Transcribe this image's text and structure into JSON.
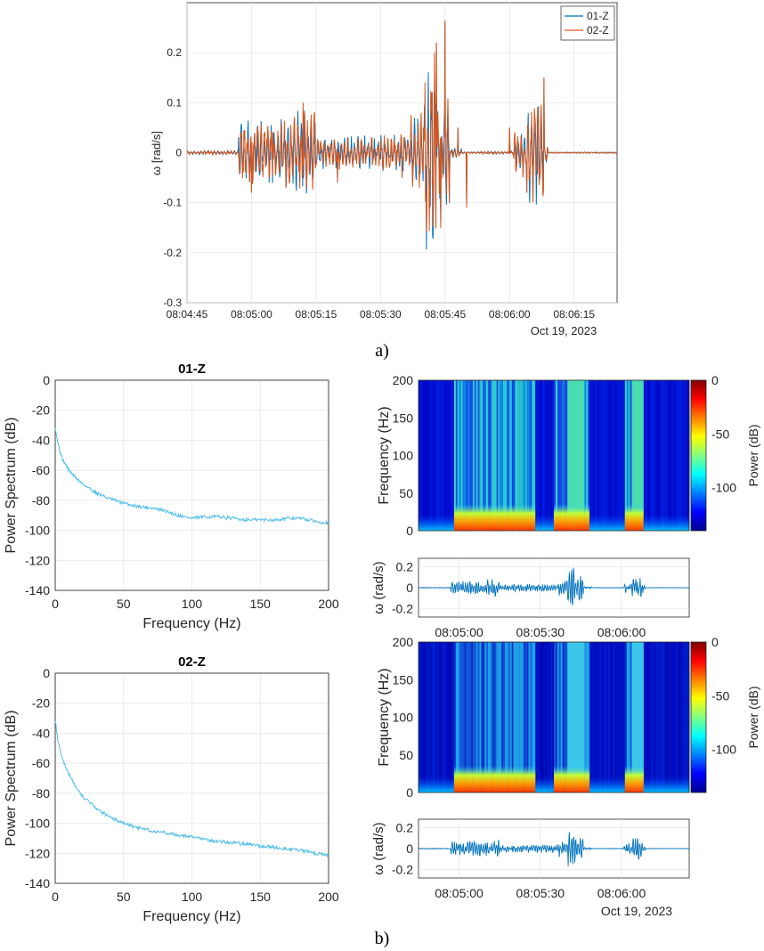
{
  "panel_a": {
    "caption": "a)",
    "date_label": "Oct 19, 2023",
    "chart_data": {
      "type": "line",
      "ylabel": "ω [rad/s]",
      "xlabel": "",
      "xlim": [
        "08:04:45",
        "08:06:25"
      ],
      "ylim": [
        -0.3,
        0.3
      ],
      "x_ticks": [
        "08:04:45",
        "08:05:00",
        "08:05:15",
        "08:05:30",
        "08:05:45",
        "08:06:00",
        "08:06:15"
      ],
      "y_ticks": [
        0.2,
        0.1,
        0,
        -0.1,
        -0.2,
        -0.3
      ],
      "grid": true,
      "legend": "top-right",
      "series": [
        {
          "name": "01-Z",
          "color": "#0072BD",
          "x": [
            "08:04:45",
            "08:04:50",
            "08:04:52",
            "08:04:58",
            "08:05:00",
            "08:05:05",
            "08:05:08",
            "08:05:12",
            "08:05:20",
            "08:05:28",
            "08:05:35",
            "08:05:40",
            "08:05:42",
            "08:05:43",
            "08:05:44",
            "08:05:45",
            "08:05:46",
            "08:05:48",
            "08:05:50",
            "08:05:55",
            "08:05:58",
            "08:06:00",
            "08:06:04",
            "08:06:06",
            "08:06:08",
            "08:06:10",
            "08:06:25"
          ],
          "y": [
            0,
            0.005,
            0,
            -0.02,
            -0.08,
            0.04,
            -0.07,
            0.09,
            -0.06,
            0.03,
            -0.05,
            0.05,
            0.12,
            0.22,
            -0.15,
            0.26,
            -0.1,
            0.05,
            -0.11,
            0,
            0,
            0.05,
            -0.08,
            0.06,
            0.15,
            0,
            0
          ]
        },
        {
          "name": "02-Z",
          "color": "#D95319",
          "x": [
            "08:04:45",
            "08:04:50",
            "08:04:52",
            "08:04:58",
            "08:05:00",
            "08:05:05",
            "08:05:08",
            "08:05:12",
            "08:05:20",
            "08:05:28",
            "08:05:35",
            "08:05:40",
            "08:05:42",
            "08:05:43",
            "08:05:44",
            "08:05:45",
            "08:05:46",
            "08:05:48",
            "08:05:50",
            "08:05:55",
            "08:05:58",
            "08:06:00",
            "08:06:04",
            "08:06:06",
            "08:06:08",
            "08:06:10",
            "08:06:25"
          ],
          "y": [
            0,
            0.005,
            0,
            -0.02,
            -0.08,
            0.04,
            -0.07,
            0.1,
            -0.06,
            0.03,
            -0.05,
            0.05,
            0.12,
            0.22,
            -0.15,
            0.265,
            -0.1,
            0.05,
            -0.11,
            0,
            0,
            0.05,
            -0.08,
            0.06,
            0.15,
            0,
            0
          ]
        }
      ]
    }
  },
  "psd": [
    {
      "title": "01-Z",
      "chart_data": {
        "type": "line",
        "title": "01-Z",
        "xlabel": "Frequency (Hz)",
        "ylabel": "Power Spectrum (dB)",
        "xlim": [
          0,
          200
        ],
        "ylim": [
          -140,
          0
        ],
        "x_ticks": [
          0,
          50,
          100,
          150,
          200
        ],
        "y_ticks": [
          0,
          -20,
          -40,
          -60,
          -80,
          -100,
          -120,
          -140
        ],
        "grid": true,
        "series": [
          {
            "color": "#4DBEEE",
            "x": [
              0,
              2,
              5,
              10,
              15,
              20,
              30,
              40,
              50,
              60,
              70,
              80,
              90,
              100,
              110,
              120,
              130,
              140,
              150,
              160,
              170,
              180,
              190,
              200
            ],
            "y": [
              -31,
              -42,
              -52,
              -60,
              -65,
              -69,
              -75,
              -79,
              -82,
              -84,
              -85,
              -87,
              -90,
              -92,
              -91,
              -91,
              -92,
              -93,
              -93,
              -93,
              -92,
              -92,
              -94,
              -95
            ]
          }
        ]
      }
    },
    {
      "title": "02-Z",
      "chart_data": {
        "type": "line",
        "title": "02-Z",
        "xlabel": "Frequency (Hz)",
        "ylabel": "Power Spectrum (dB)",
        "xlim": [
          0,
          200
        ],
        "ylim": [
          -140,
          0
        ],
        "x_ticks": [
          0,
          50,
          100,
          150,
          200
        ],
        "y_ticks": [
          0,
          -20,
          -40,
          -60,
          -80,
          -100,
          -120,
          -140
        ],
        "grid": true,
        "series": [
          {
            "color": "#4DBEEE",
            "x": [
              0,
              2,
              5,
              10,
              15,
              20,
              30,
              40,
              50,
              60,
              70,
              80,
              90,
              100,
              110,
              120,
              130,
              140,
              150,
              160,
              170,
              180,
              190,
              200
            ],
            "y": [
              -31,
              -45,
              -57,
              -67,
              -76,
              -82,
              -90,
              -96,
              -100,
              -103,
              -105,
              -106,
              -108,
              -109,
              -111,
              -112,
              -113,
              -114,
              -115,
              -116,
              -117,
              -118,
              -120,
              -121
            ]
          }
        ]
      }
    }
  ],
  "spectrograms": [
    {
      "chart_data": {
        "type": "heatmap",
        "ylabel": "Frequency (Hz)",
        "ylim": [
          0,
          200
        ],
        "y_ticks": [
          0,
          50,
          100,
          150,
          200
        ],
        "colorbar_label": "Power (dB)",
        "colorbar_ticks": [
          0,
          -50,
          -100
        ],
        "clim": [
          -140,
          0
        ],
        "active_intervals": [
          [
            "08:04:58",
            "08:05:28"
          ],
          [
            "08:05:35",
            "08:05:48"
          ],
          [
            "08:06:01",
            "08:06:08"
          ]
        ]
      },
      "wave": {
        "ylabel": "ω (rad/s)",
        "y_ticks": [
          0.2,
          0,
          -0.2
        ],
        "ylim": [
          -0.28,
          0.28
        ],
        "x_ticks": [
          "08:05:00",
          "08:05:30",
          "08:06:00"
        ],
        "color": "#0072BD"
      }
    },
    {
      "chart_data": {
        "type": "heatmap",
        "ylabel": "Frequency (Hz)",
        "ylim": [
          0,
          200
        ],
        "y_ticks": [
          0,
          50,
          100,
          150,
          200
        ],
        "colorbar_label": "Power (dB)",
        "colorbar_ticks": [
          0,
          -50,
          -100
        ],
        "clim": [
          -140,
          0
        ],
        "active_intervals": [
          [
            "08:04:58",
            "08:05:28"
          ],
          [
            "08:05:35",
            "08:05:48"
          ],
          [
            "08:06:01",
            "08:06:08"
          ]
        ]
      },
      "wave": {
        "ylabel": "ω (rad/s)",
        "y_ticks": [
          0.2,
          0,
          -0.2
        ],
        "ylim": [
          -0.28,
          0.28
        ],
        "x_ticks": [
          "08:05:00",
          "08:05:30",
          "08:06:00"
        ],
        "date_label": "Oct 19, 2023",
        "color": "#0072BD"
      }
    }
  ],
  "caption_b": "b)"
}
